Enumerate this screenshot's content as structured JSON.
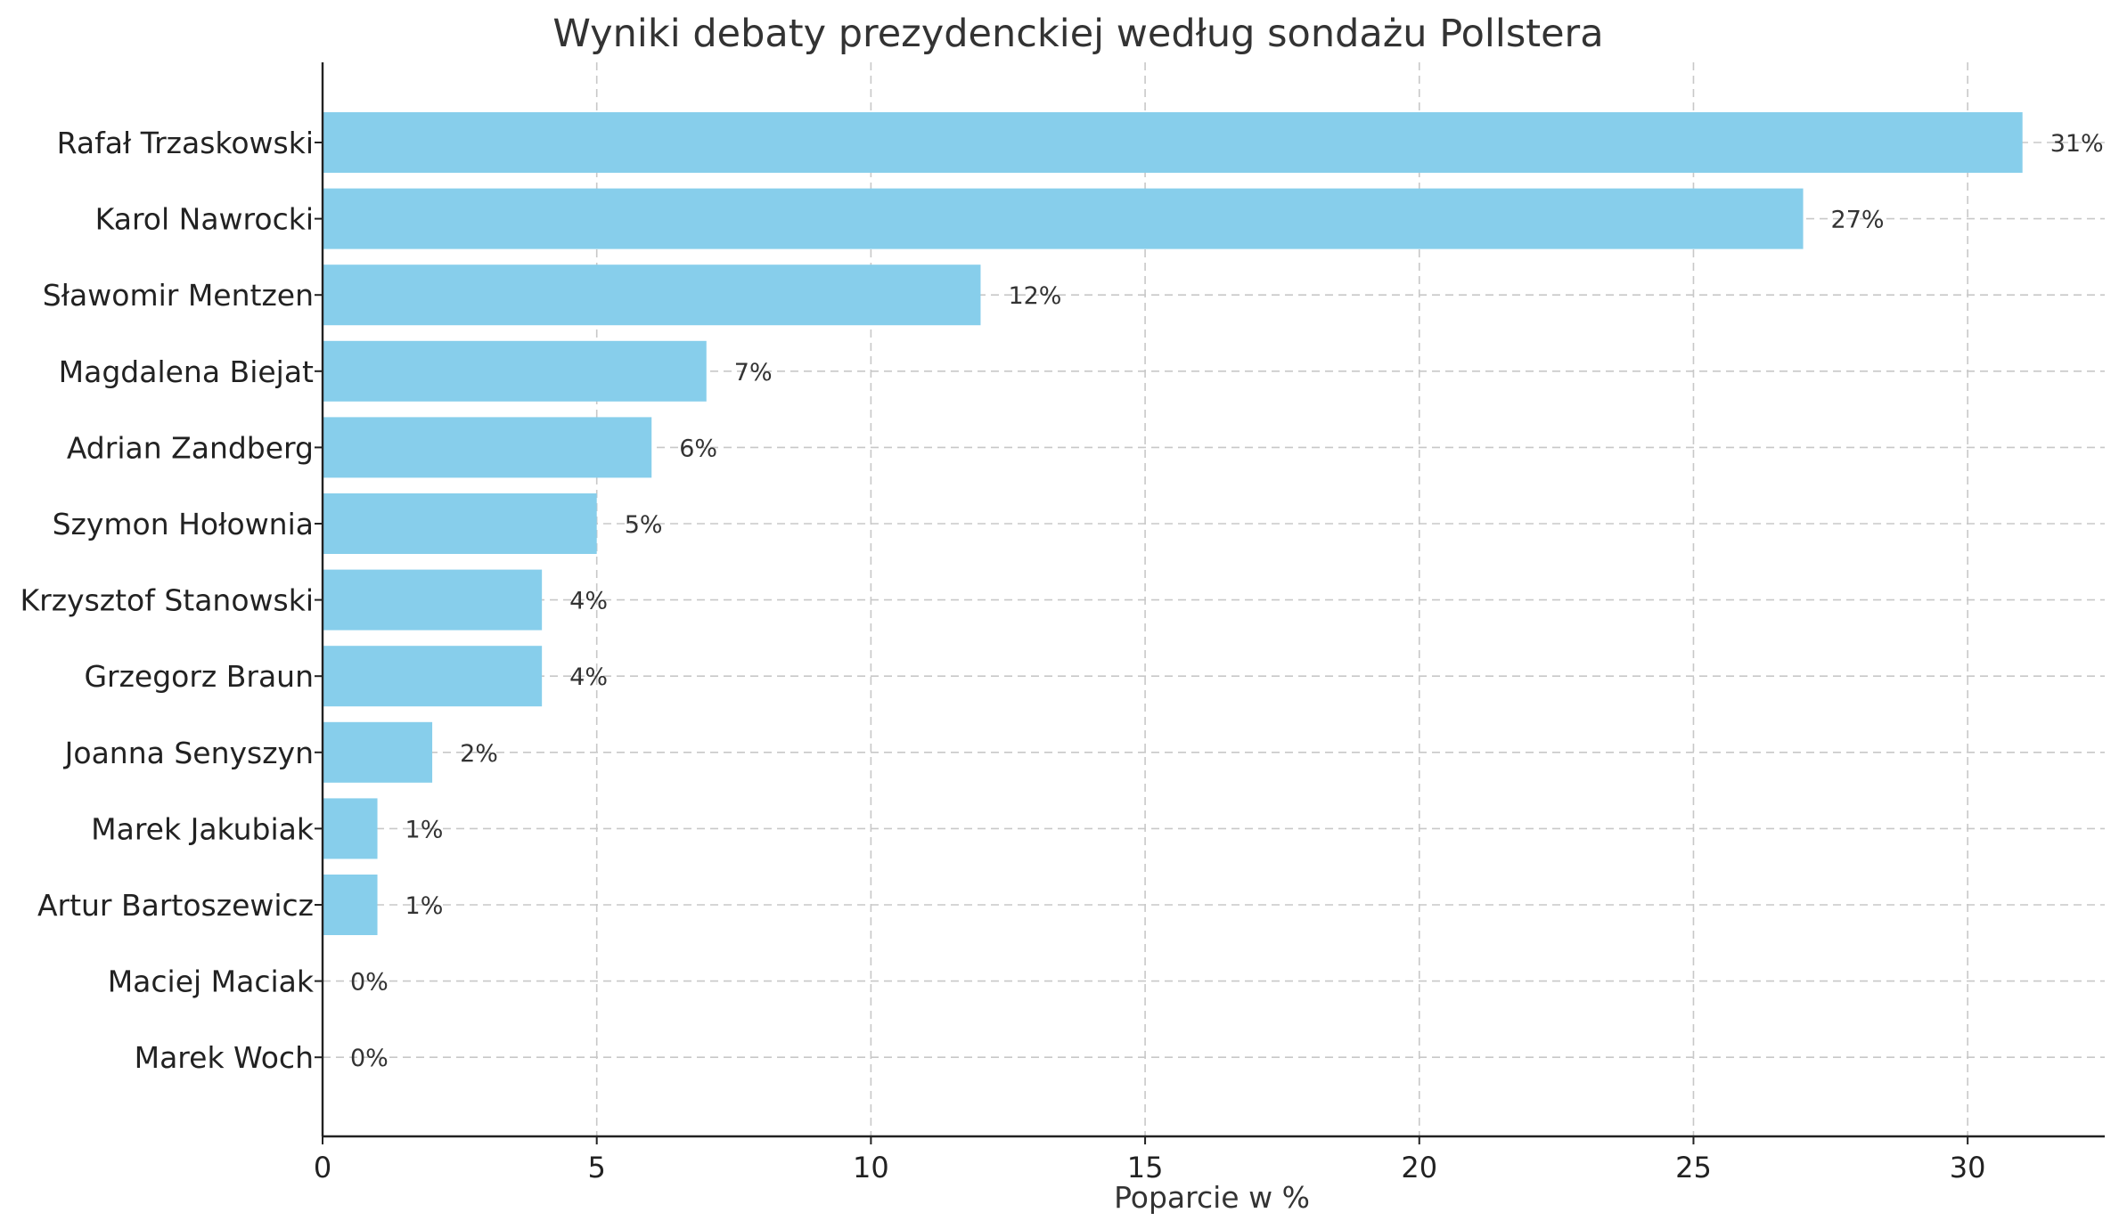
{
  "chart_data": {
    "type": "bar",
    "orientation": "horizontal",
    "title": "Wyniki debaty prezydenckiej według sondażu Pollstera",
    "xlabel": "Poparcie w %",
    "ylabel": "",
    "xlim": [
      0,
      32.5
    ],
    "xticks": [
      0,
      5,
      10,
      15,
      20,
      25,
      30
    ],
    "grid": true,
    "bar_color": "#87ceeb",
    "value_suffix": "%",
    "categories": [
      "Rafał Trzaskowski",
      "Karol Nawrocki",
      "Sławomir Mentzen",
      "Magdalena Biejat",
      "Adrian Zandberg",
      "Szymon Hołownia",
      "Krzysztof Stanowski",
      "Grzegorz Braun",
      "Joanna Senyszyn",
      "Marek Jakubiak",
      "Artur Bartoszewicz",
      "Maciej Maciak",
      "Marek Woch"
    ],
    "values": [
      31,
      27,
      12,
      7,
      6,
      5,
      4,
      4,
      2,
      1,
      1,
      0,
      0
    ]
  }
}
